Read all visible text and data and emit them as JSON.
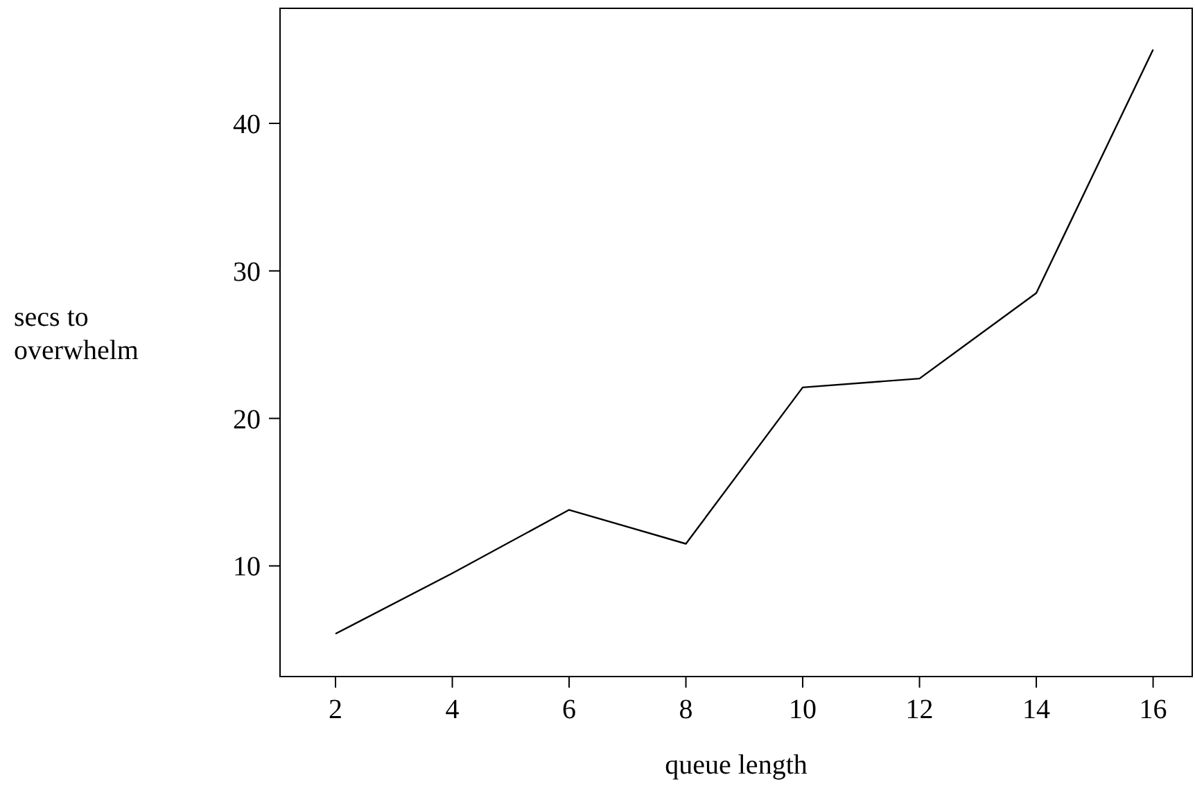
{
  "chart_data": {
    "type": "line",
    "xlabel": "queue length",
    "ylabel": "secs to overwhelm",
    "x": [
      2,
      4,
      6,
      8,
      10,
      12,
      14,
      16
    ],
    "series": [
      {
        "color": "#000000",
        "values": [
          5.4,
          9.5,
          13.8,
          11.5,
          22.1,
          22.7,
          28.5,
          45.0
        ]
      }
    ],
    "xlim": [
      1.05,
      16.67
    ],
    "ylim": [
      2.5,
      47.8
    ],
    "xticks": [
      2,
      4,
      6,
      8,
      10,
      12,
      14,
      16
    ],
    "yticks": [
      10,
      20,
      30,
      40
    ],
    "grid": false,
    "marker": "none",
    "line_style": "solid"
  }
}
